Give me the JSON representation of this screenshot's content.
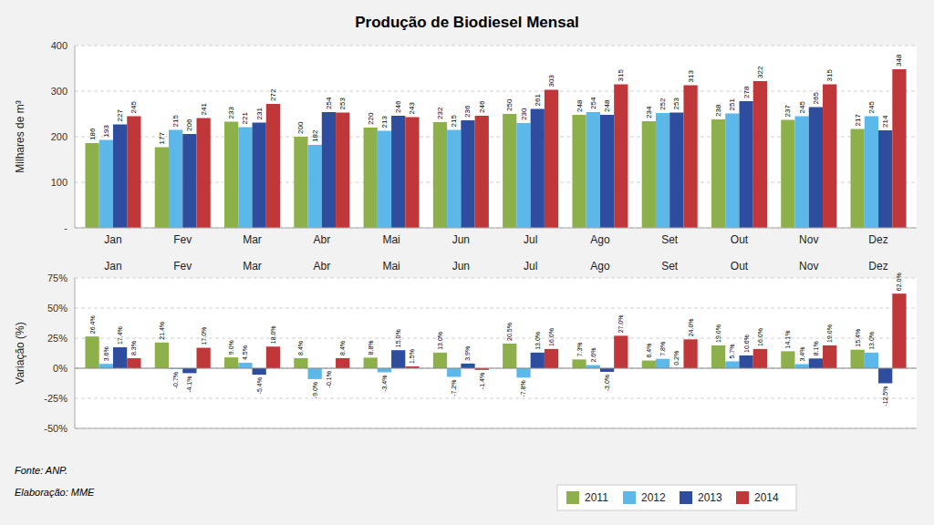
{
  "chart_data": [
    {
      "type": "bar",
      "title": "Produção de Biodiesel Mensal",
      "categories": [
        "Jan",
        "Fev",
        "Mar",
        "Abr",
        "Mai",
        "Jun",
        "Jul",
        "Ago",
        "Set",
        "Out",
        "Nov",
        "Dez"
      ],
      "series": [
        {
          "name": "2011",
          "color": "#8DB04A",
          "values": [
            186,
            177,
            233,
            200,
            220,
            232,
            250,
            248,
            234,
            238,
            237,
            217
          ]
        },
        {
          "name": "2012",
          "color": "#5BB8E8",
          "values": [
            193,
            215,
            221,
            182,
            213,
            215,
            230,
            254,
            252,
            251,
            245,
            245
          ]
        },
        {
          "name": "2013",
          "color": "#2E4D9E",
          "values": [
            227,
            206,
            231,
            254,
            246,
            236,
            261,
            248,
            253,
            278,
            265,
            214
          ]
        },
        {
          "name": "2014",
          "color": "#C0373A",
          "values": [
            245,
            241,
            272,
            253,
            243,
            246,
            303,
            315,
            313,
            322,
            315,
            348
          ]
        }
      ],
      "ylabel": "Milhares de m³",
      "ylim": [
        0,
        400
      ],
      "yticks": [
        {
          "value": 0,
          "label": "-"
        },
        100,
        200,
        300,
        400
      ],
      "grid": true,
      "data_labels": true,
      "legend": "bottom",
      "annotations": [
        "Fonte: ANP.",
        "Elaboração: MME"
      ]
    },
    {
      "type": "bar",
      "categories": [
        "Jan",
        "Fev",
        "Mar",
        "Abr",
        "Mai",
        "Jun",
        "Jul",
        "Ago",
        "Set",
        "Out",
        "Nov",
        "Dez"
      ],
      "series": [
        {
          "name": "2011",
          "color": "#8DB04A",
          "values": [
            26.4,
            21.4,
            9.0,
            8.4,
            8.8,
            13.0,
            20.5,
            7.3,
            6.4,
            19.0,
            14.1,
            15.4
          ],
          "value_labels": [
            "26.4%",
            "21.4%",
            "9.0%",
            "8.4%",
            "8.8%",
            "13.0%",
            "20.5%",
            "7.3%",
            "6.4%",
            "19.0%",
            "14.1%",
            "15.4%"
          ]
        },
        {
          "name": "2012",
          "color": "#5BB8E8",
          "values": [
            3.6,
            -0.7,
            4.5,
            -9.0,
            -3.4,
            -7.2,
            -7.8,
            2.6,
            7.8,
            5.7,
            3.4,
            13.0
          ],
          "value_labels": [
            "3.6%",
            "-0.7%",
            "4.5%",
            "-9.0%",
            "-3.4%",
            "-7.2%",
            "-7.8%",
            "2.6%",
            "7.8%",
            "5.7%",
            "3.4%",
            "13.0%"
          ]
        },
        {
          "name": "2013",
          "color": "#2E4D9E",
          "values": [
            17.4,
            -4.1,
            -5.4,
            -0.1,
            15.0,
            3.9,
            13.0,
            -3.0,
            0.2,
            10.6,
            8.1,
            -12.5
          ],
          "value_labels": [
            "17.4%",
            "-4.1%",
            "-5.4%",
            "-0.1%",
            "15.0%",
            "3.9%",
            "13.0%",
            "-3.0%",
            "0.2%",
            "10.6%",
            "8.1%",
            "-12.5%"
          ]
        },
        {
          "name": "2014",
          "color": "#C0373A",
          "values": [
            8.3,
            17.0,
            18.0,
            8.4,
            1.5,
            -1.4,
            16.0,
            27.0,
            24.0,
            16.0,
            19.0,
            62.0
          ],
          "value_labels": [
            "8.3%",
            "17.0%",
            "18.0%",
            "8.4%",
            "1.5%",
            "-1.4%",
            "16.0%",
            "27.0%",
            "24.0%",
            "16.0%",
            "19.0%",
            "62.0%"
          ]
        }
      ],
      "ylabel": "Variação (%)",
      "ylim": [
        -50,
        75
      ],
      "yticks": [
        {
          "value": -50,
          "label": "-50%"
        },
        {
          "value": -25,
          "label": "-25%"
        },
        {
          "value": 0,
          "label": "0%"
        },
        {
          "value": 25,
          "label": "25%"
        },
        {
          "value": 50,
          "label": "50%"
        },
        {
          "value": 75,
          "label": "75%"
        }
      ],
      "grid": true,
      "data_labels": true
    }
  ]
}
